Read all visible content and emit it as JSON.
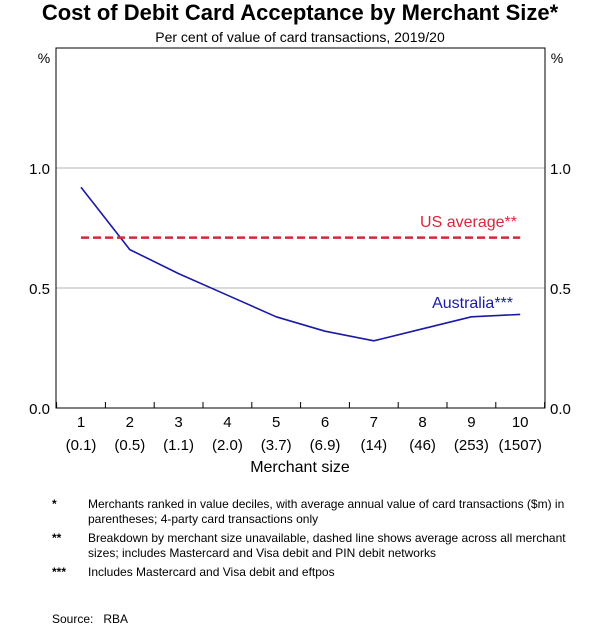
{
  "chart_data": {
    "type": "line",
    "title": "Cost of Debit Card Acceptance by Merchant Size*",
    "subtitle": "Per cent of value of card transactions, 2019/20",
    "xlabel": "Merchant size",
    "y_unit_left": "%",
    "y_unit_right": "%",
    "ylim": [
      0,
      1.5
    ],
    "yticks": [
      "0.0",
      "0.5",
      "1.0"
    ],
    "ytick_values": [
      0,
      0.5,
      1.0
    ],
    "categories": [
      "1",
      "2",
      "3",
      "4",
      "5",
      "6",
      "7",
      "8",
      "9",
      "10"
    ],
    "sublabels": [
      "(0.1)",
      "(0.5)",
      "(1.1)",
      "(2.0)",
      "(3.7)",
      "(6.9)",
      "(14)",
      "(46)",
      "(253)",
      "(1507)"
    ],
    "series": [
      {
        "name": "Australia***",
        "color": "#1a1aa6",
        "style": "solid",
        "values": [
          0.92,
          0.66,
          0.56,
          0.47,
          0.38,
          0.32,
          0.28,
          0.33,
          0.38,
          0.39
        ]
      },
      {
        "name": "US average**",
        "color": "#d9273a",
        "style": "dashed",
        "values": [
          0.71,
          0.71,
          0.71,
          0.71,
          0.71,
          0.71,
          0.71,
          0.71,
          0.71,
          0.71
        ]
      }
    ],
    "grid": true
  },
  "footnotes": [
    {
      "marker": "*",
      "text": "Merchants ranked in value deciles, with average annual value of card transactions ($m) in parentheses; 4-party card transactions only"
    },
    {
      "marker": "**",
      "text": "Breakdown by merchant size unavailable, dashed line shows average across all merchant sizes; includes Mastercard and Visa debit and PIN debit networks"
    },
    {
      "marker": "***",
      "text": "Includes Mastercard and Visa debit and eftpos"
    }
  ],
  "source": {
    "label": "Source:",
    "value": "RBA"
  }
}
